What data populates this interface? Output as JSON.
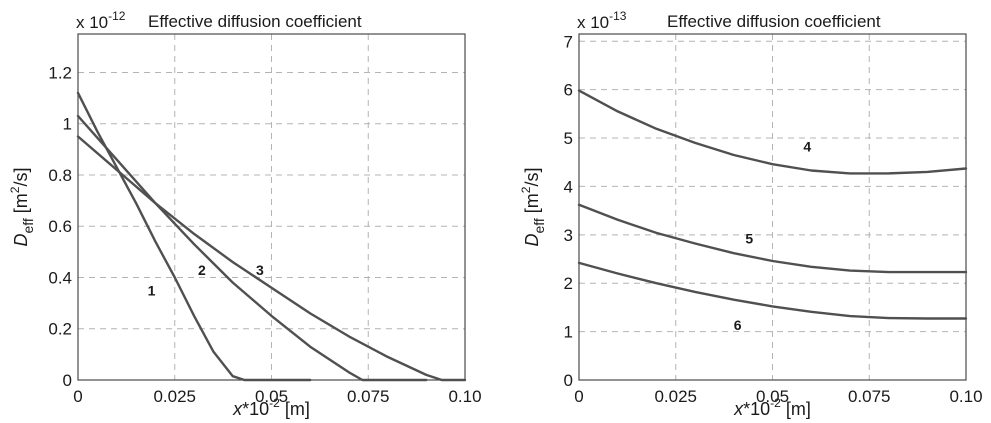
{
  "chart_data": [
    {
      "type": "line",
      "title": "Effective diffusion coefficient",
      "scale_label": "x 10",
      "scale_exponent": "-12",
      "ylabel": "D_eff [m^2/s]",
      "ylabel_main": "D",
      "ylabel_sub": "eff",
      "ylabel_unit_open": " [m",
      "ylabel_unit_sup": "2",
      "ylabel_unit_close": "/s]",
      "xlabel": "x*10^-2 [m]",
      "xlabel_var": "x",
      "xlabel_mid": "*10",
      "xlabel_sup": "-2",
      "xlabel_unit": "  [m]",
      "xlim": [
        0,
        0.1
      ],
      "ylim": [
        0,
        1.35
      ],
      "xticks": [
        "0",
        "0.025",
        "0.05",
        "0.075",
        "0.10"
      ],
      "xtick_values": [
        0,
        0.025,
        0.05,
        0.075,
        0.1
      ],
      "yticks": [
        "0",
        "0.2",
        "0.4",
        "0.6",
        "0.8",
        "1",
        "1.2"
      ],
      "ytick_values": [
        0,
        0.2,
        0.4,
        0.6,
        0.8,
        1.0,
        1.2
      ],
      "grid": true,
      "series": [
        {
          "name": "1",
          "label_at": [
            0.019,
            0.33
          ],
          "x": [
            0,
            0.005,
            0.01,
            0.015,
            0.02,
            0.025,
            0.03,
            0.035,
            0.04,
            0.043,
            0.05,
            0.06
          ],
          "y": [
            1.12,
            0.97,
            0.83,
            0.69,
            0.54,
            0.4,
            0.25,
            0.11,
            0.015,
            0.0,
            0.0,
            0.0
          ]
        },
        {
          "name": "2",
          "label_at": [
            0.032,
            0.41
          ],
          "x": [
            0,
            0.01,
            0.02,
            0.03,
            0.04,
            0.05,
            0.06,
            0.07,
            0.0735,
            0.08,
            0.09
          ],
          "y": [
            1.03,
            0.86,
            0.69,
            0.53,
            0.38,
            0.25,
            0.13,
            0.03,
            0.0,
            0.0,
            0.0
          ]
        },
        {
          "name": "3",
          "label_at": [
            0.047,
            0.41
          ],
          "x": [
            0,
            0.01,
            0.02,
            0.03,
            0.04,
            0.05,
            0.06,
            0.07,
            0.08,
            0.09,
            0.094,
            0.1
          ],
          "y": [
            0.95,
            0.82,
            0.69,
            0.57,
            0.46,
            0.36,
            0.26,
            0.17,
            0.09,
            0.02,
            0.0,
            0.0
          ]
        }
      ]
    },
    {
      "type": "line",
      "title": "Effective diffusion coefficient",
      "scale_label": "x 10",
      "scale_exponent": "-13",
      "ylabel": "D_eff [m^2/s]",
      "ylabel_main": "D",
      "ylabel_sub": "eff",
      "ylabel_unit_open": " [m",
      "ylabel_unit_sup": "2",
      "ylabel_unit_close": "/s]",
      "xlabel": "x*10^-2 [m]",
      "xlabel_var": "x",
      "xlabel_mid": "*10",
      "xlabel_sup": "-2",
      "xlabel_unit": "  [m]",
      "xlim": [
        0,
        0.1
      ],
      "ylim": [
        0,
        7.15
      ],
      "xticks": [
        "0",
        "0.025",
        "0.05",
        "0.075",
        "0.10"
      ],
      "xtick_values": [
        0,
        0.025,
        0.05,
        0.075,
        0.1
      ],
      "yticks": [
        "0",
        "1",
        "2",
        "3",
        "4",
        "5",
        "6",
        "7"
      ],
      "ytick_values": [
        0,
        1,
        2,
        3,
        4,
        5,
        6,
        7
      ],
      "grid": true,
      "series": [
        {
          "name": "4",
          "label_at": [
            0.059,
            4.72
          ],
          "x": [
            0,
            0.01,
            0.02,
            0.03,
            0.04,
            0.05,
            0.06,
            0.07,
            0.08,
            0.09,
            0.1
          ],
          "y": [
            5.98,
            5.55,
            5.19,
            4.9,
            4.65,
            4.46,
            4.33,
            4.27,
            4.27,
            4.3,
            4.37
          ]
        },
        {
          "name": "5",
          "label_at": [
            0.044,
            2.82
          ],
          "x": [
            0,
            0.01,
            0.02,
            0.03,
            0.04,
            0.05,
            0.06,
            0.07,
            0.08,
            0.09,
            0.1
          ],
          "y": [
            3.62,
            3.31,
            3.04,
            2.82,
            2.62,
            2.46,
            2.34,
            2.26,
            2.23,
            2.23,
            2.23
          ]
        },
        {
          "name": "6",
          "label_at": [
            0.041,
            1.03
          ],
          "x": [
            0,
            0.01,
            0.02,
            0.03,
            0.04,
            0.05,
            0.06,
            0.07,
            0.08,
            0.09,
            0.1
          ],
          "y": [
            2.42,
            2.2,
            2.0,
            1.82,
            1.66,
            1.52,
            1.41,
            1.32,
            1.28,
            1.27,
            1.27
          ]
        }
      ]
    }
  ]
}
